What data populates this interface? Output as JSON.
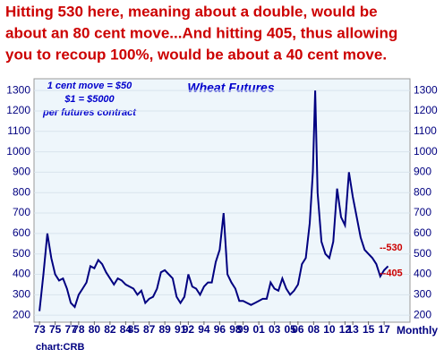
{
  "chart_data": {
    "type": "line",
    "title_lines": [
      "Hitting 530 here, meaning about a double, would be",
      "about an 80 cent move...And hitting 405, thus allowing",
      "you to recoup 100%, would be about a 40 cent move."
    ],
    "subtitle": "Wheat Futures",
    "notes": [
      "1 cent move = $50",
      "$1 = $5000",
      "per futures contract"
    ],
    "x_label": "Monthly",
    "source": "chart:CRB",
    "annotations": [
      {
        "text": "--530",
        "value": 530
      },
      {
        "text": "--405",
        "value": 405
      }
    ],
    "annotation_color": "#cc0000",
    "series": [
      {
        "name": "Wheat",
        "color": "#000080",
        "x": [
          1973.0,
          1973.5,
          1974.0,
          1974.5,
          1975.0,
          1975.5,
          1976.0,
          1976.5,
          1977.0,
          1977.5,
          1978.0,
          1978.5,
          1979.0,
          1979.5,
          1980.0,
          1980.5,
          1981.0,
          1981.5,
          1982.0,
          1982.5,
          1983.0,
          1983.5,
          1984.0,
          1984.5,
          1985.0,
          1985.5,
          1986.0,
          1986.5,
          1987.0,
          1987.5,
          1988.0,
          1988.5,
          1989.0,
          1989.5,
          1990.0,
          1990.5,
          1991.0,
          1991.5,
          1992.0,
          1992.5,
          1993.0,
          1993.5,
          1994.0,
          1994.5,
          1995.0,
          1995.5,
          1996.0,
          1996.5,
          1997.0,
          1997.5,
          1998.0,
          1998.5,
          1999.0,
          1999.5,
          2000.0,
          2000.5,
          2001.0,
          2001.5,
          2002.0,
          2002.5,
          2003.0,
          2003.5,
          2004.0,
          2004.5,
          2005.0,
          2005.5,
          2006.0,
          2006.5,
          2007.0,
          2007.5,
          2007.9,
          2008.2,
          2008.5,
          2009.0,
          2009.5,
          2010.0,
          2010.5,
          2011.0,
          2011.5,
          2012.0,
          2012.5,
          2013.0,
          2013.5,
          2014.0,
          2014.5,
          2015.0,
          2015.5,
          2016.0,
          2016.5,
          2017.0,
          2017.5
        ],
        "values": [
          220,
          400,
          600,
          480,
          400,
          370,
          380,
          330,
          260,
          240,
          300,
          330,
          360,
          440,
          430,
          470,
          450,
          410,
          380,
          350,
          380,
          370,
          350,
          340,
          330,
          300,
          320,
          260,
          280,
          290,
          330,
          410,
          420,
          400,
          380,
          290,
          260,
          290,
          400,
          340,
          330,
          300,
          340,
          360,
          360,
          460,
          520,
          700,
          400,
          360,
          330,
          270,
          270,
          260,
          250,
          260,
          270,
          280,
          280,
          360,
          330,
          320,
          380,
          330,
          300,
          320,
          350,
          450,
          480,
          650,
          900,
          1300,
          800,
          560,
          500,
          480,
          560,
          820,
          680,
          640,
          900,
          780,
          680,
          580,
          520,
          500,
          480,
          450,
          390,
          420,
          440
        ]
      }
    ],
    "xlim": [
      1972.3,
      2020.3
    ],
    "xticks": [
      {
        "value": 1973,
        "label": "73"
      },
      {
        "value": 1975,
        "label": "75"
      },
      {
        "value": 1977,
        "label": "77"
      },
      {
        "value": 1978,
        "label": "78"
      },
      {
        "value": 1980,
        "label": "80"
      },
      {
        "value": 1982,
        "label": "82"
      },
      {
        "value": 1984,
        "label": "84"
      },
      {
        "value": 1985,
        "label": "85"
      },
      {
        "value": 1987,
        "label": "87"
      },
      {
        "value": 1989,
        "label": "89"
      },
      {
        "value": 1991,
        "label": "91"
      },
      {
        "value": 1992,
        "label": "92"
      },
      {
        "value": 1994,
        "label": "94"
      },
      {
        "value": 1996,
        "label": "96"
      },
      {
        "value": 1998,
        "label": "98"
      },
      {
        "value": 1999,
        "label": "99"
      },
      {
        "value": 2001,
        "label": "01"
      },
      {
        "value": 2003,
        "label": "03"
      },
      {
        "value": 2005,
        "label": "05"
      },
      {
        "value": 2006,
        "label": "06"
      },
      {
        "value": 2008,
        "label": "08"
      },
      {
        "value": 2010,
        "label": "10"
      },
      {
        "value": 2012,
        "label": "12"
      },
      {
        "value": 2013,
        "label": "13"
      },
      {
        "value": 2015,
        "label": "15"
      },
      {
        "value": 2017,
        "label": "17"
      }
    ],
    "ylim": [
      170,
      1340
    ],
    "yticks": [
      200,
      300,
      400,
      500,
      600,
      700,
      800,
      900,
      1000,
      1100,
      1200,
      1300
    ],
    "grid": true
  }
}
